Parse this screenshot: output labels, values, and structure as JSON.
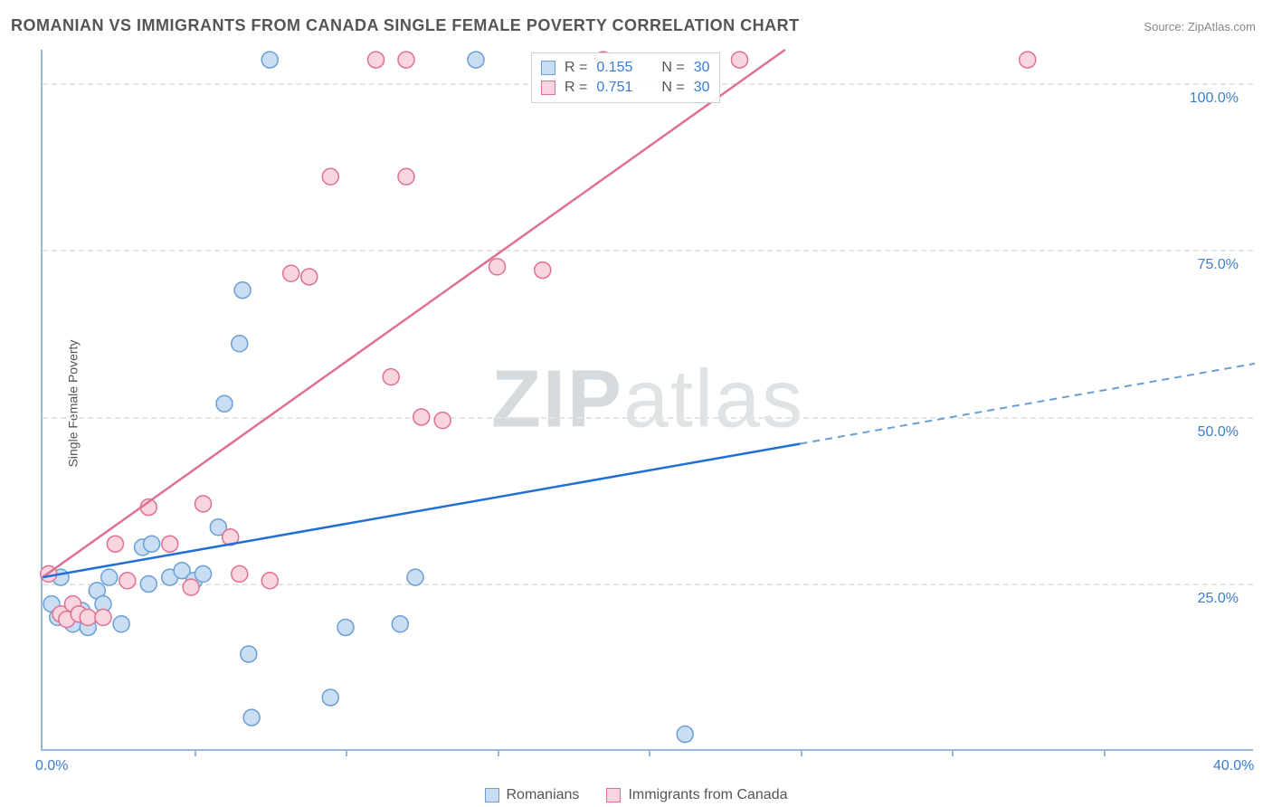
{
  "title": "ROMANIAN VS IMMIGRANTS FROM CANADA SINGLE FEMALE POVERTY CORRELATION CHART",
  "source_label": "Source:",
  "source_name": "ZipAtlas.com",
  "ylabel": "Single Female Poverty",
  "watermark_bold": "ZIP",
  "watermark_rest": "atlas",
  "chart": {
    "type": "scatter",
    "x_range": [
      0,
      40
    ],
    "y_range": [
      0,
      105
    ],
    "y_ticks": [
      25,
      50,
      75,
      100
    ],
    "y_tick_labels": [
      "25.0%",
      "50.0%",
      "75.0%",
      "100.0%"
    ],
    "x_ticks": [
      0,
      5,
      10,
      15,
      20,
      25,
      30,
      35,
      40
    ],
    "x_tick_labels": [
      "0.0%",
      "",
      "",
      "",
      "",
      "",
      "",
      "",
      "40.0%"
    ],
    "background_color": "#ffffff",
    "grid_color": "#e5e5e5",
    "axis_color": "#9ab6d8",
    "colors": {
      "blue_fill": "#c9ddf3",
      "blue_stroke": "#6a9fd5",
      "blue_line": "#1f6fd4",
      "pink_fill": "#f9d6df",
      "pink_stroke": "#e0708f",
      "pink_line": "#e0708f",
      "tick_label": "#3b7dd1"
    },
    "marker_radius": 9,
    "series": [
      {
        "name": "Romanians",
        "label": "Romanians",
        "color_key": "blue",
        "stats": {
          "R": "0.155",
          "N": "30"
        },
        "points": [
          [
            0.3,
            22
          ],
          [
            0.5,
            20
          ],
          [
            0.6,
            26
          ],
          [
            1.0,
            19
          ],
          [
            1.3,
            21
          ],
          [
            1.5,
            18.5
          ],
          [
            1.8,
            24
          ],
          [
            2.0,
            22
          ],
          [
            2.2,
            26
          ],
          [
            2.6,
            19
          ],
          [
            3.3,
            30.5
          ],
          [
            3.5,
            25
          ],
          [
            3.6,
            31
          ],
          [
            4.2,
            26
          ],
          [
            4.6,
            27
          ],
          [
            5.0,
            25.5
          ],
          [
            5.3,
            26.5
          ],
          [
            5.8,
            33.5
          ],
          [
            6.0,
            52
          ],
          [
            6.5,
            61
          ],
          [
            6.6,
            69
          ],
          [
            6.8,
            14.5
          ],
          [
            6.9,
            5
          ],
          [
            7.5,
            103.5
          ],
          [
            9.5,
            8
          ],
          [
            10.0,
            18.5
          ],
          [
            11.8,
            19
          ],
          [
            12.3,
            26
          ],
          [
            14.3,
            103.5
          ],
          [
            21.2,
            2.5
          ]
        ],
        "trend": {
          "x1": 0,
          "y1": 26,
          "x2": 25,
          "y2": 46,
          "dash_to_x": 40,
          "dash_to_y": 58
        }
      },
      {
        "name": "Immigrants from Canada",
        "label": "Immigrants from Canada",
        "color_key": "pink",
        "stats": {
          "R": "0.751",
          "N": "30"
        },
        "points": [
          [
            0.2,
            26.5
          ],
          [
            0.6,
            20.5
          ],
          [
            0.8,
            19.7
          ],
          [
            1.0,
            22
          ],
          [
            1.2,
            20.5
          ],
          [
            1.5,
            20
          ],
          [
            2.0,
            20
          ],
          [
            2.4,
            31
          ],
          [
            2.8,
            25.5
          ],
          [
            3.5,
            36.5
          ],
          [
            4.2,
            31
          ],
          [
            4.9,
            24.5
          ],
          [
            5.3,
            37
          ],
          [
            6.2,
            32
          ],
          [
            6.5,
            26.5
          ],
          [
            7.5,
            25.5
          ],
          [
            8.2,
            71.5
          ],
          [
            8.8,
            71
          ],
          [
            9.5,
            86
          ],
          [
            11.0,
            103.5
          ],
          [
            11.5,
            56
          ],
          [
            12.0,
            103.5
          ],
          [
            12.5,
            50
          ],
          [
            12.0,
            86
          ],
          [
            13.2,
            49.5
          ],
          [
            15.0,
            72.5
          ],
          [
            16.5,
            72
          ],
          [
            18.5,
            103.5
          ],
          [
            23.0,
            103.5
          ],
          [
            32.5,
            103.5
          ]
        ],
        "trend": {
          "x1": 0,
          "y1": 26,
          "x2": 24.5,
          "y2": 105
        }
      }
    ]
  },
  "stats_box": {
    "r_prefix": "R =",
    "n_prefix": "N ="
  },
  "legend": {
    "items": [
      {
        "color_key": "blue",
        "label": "Romanians"
      },
      {
        "color_key": "pink",
        "label": "Immigrants from Canada"
      }
    ]
  }
}
